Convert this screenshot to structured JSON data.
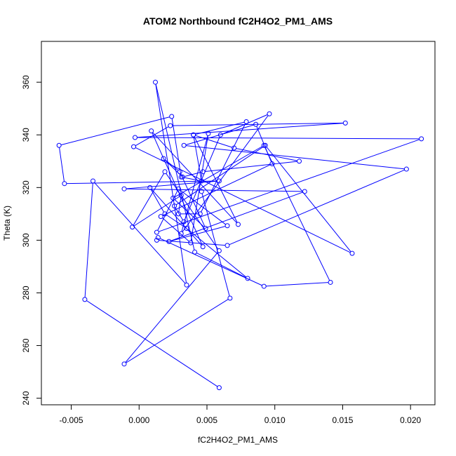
{
  "chart_data": {
    "type": "line",
    "title": "ATOM2 Northbound fC2H4O2_PM1_AMS",
    "xlabel": "fC2H4O2_PM1_AMS",
    "ylabel": "Theta (K)",
    "xlim": [
      -0.0072,
      0.0218
    ],
    "ylim": [
      237.5,
      375.5
    ],
    "xticks": [
      -0.005,
      0.0,
      0.005,
      0.01,
      0.015,
      0.02
    ],
    "xtick_labels": [
      "-0.005",
      "0.000",
      "0.005",
      "0.010",
      "0.015",
      "0.020"
    ],
    "yticks": [
      240,
      260,
      280,
      300,
      320,
      340,
      360
    ],
    "ytick_labels": [
      "240",
      "260",
      "280",
      "300",
      "320",
      "340",
      "360"
    ],
    "grid": false,
    "line_color": "#0000ff",
    "marker": "open-circle",
    "series": [
      {
        "x": [
          0.0059,
          -0.004,
          -0.0034,
          0.0035,
          0.0012,
          0.0041,
          0.008,
          0.0035,
          0.0019,
          0.0008,
          0.0047,
          0.0009,
          0.0073,
          0.004,
          0.0046,
          0.0031,
          0.0024,
          -0.0059,
          -0.0055,
          0.0059,
          -0.0011,
          0.0122,
          0.0022,
          0.0065,
          0.0029,
          0.0013,
          0.0208,
          -0.0003,
          0.0152,
          0.0023,
          -0.0004,
          0.0157,
          0.0093,
          0.0026,
          0.0033,
          0.006,
          0.0096,
          0.0031,
          0.0051,
          0.0038,
          0.0016,
          0.0098,
          0.0086,
          0.0033,
          0.0197,
          0.0065,
          0.0013,
          0.0014,
          0.0092,
          0.0141,
          0.0092,
          0.0025,
          0.0049,
          0.003,
          0.0018,
          0.0032,
          0.0047,
          0.0118,
          0.007,
          0.004,
          0.0079,
          0.0045,
          0.0029,
          0.0031,
          -0.0005,
          0.0019,
          0.0059,
          -0.0011,
          0.0067,
          0.0046
        ],
        "y": [
          244,
          277.5,
          322.5,
          283,
          360,
          295.5,
          285.5,
          304.5,
          310,
          320,
          297.5,
          341.5,
          306,
          340,
          322.5,
          324,
          347,
          336,
          321.5,
          322.5,
          319.5,
          318.5,
          299.5,
          305.5,
          319.5,
          303,
          338.5,
          339,
          344.5,
          343.5,
          335.5,
          295,
          336,
          313,
          307,
          340,
          348,
          302.5,
          340.5,
          299,
          309,
          329,
          344,
          336,
          327,
          298,
          300,
          301,
          282.5,
          284,
          336,
          316,
          304.5,
          326,
          331,
          324,
          326,
          330,
          335,
          340,
          345,
          310,
          310,
          317,
          305,
          326,
          296,
          253,
          278,
          318.5
        ]
      }
    ]
  }
}
